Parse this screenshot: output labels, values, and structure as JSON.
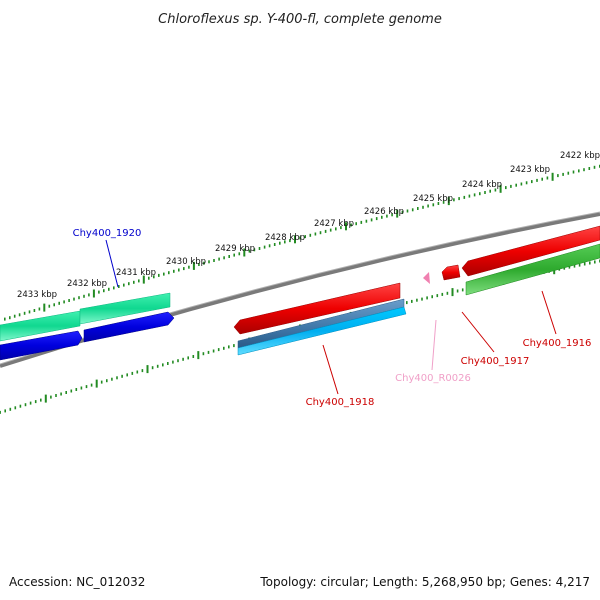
{
  "title": "Chloroflexus sp. Y-400-fl, complete genome",
  "footer": {
    "accession": "Accession: NC_012032",
    "info": "Topology: circular; Length: 5,268,950 bp; Genes: 4,217"
  },
  "tick_labels": [
    "2422 kbp",
    "2423 kbp",
    "2424 kbp",
    "2425 kbp",
    "2426 kbp",
    "2427 kbp",
    "2428 kbp",
    "2429 kbp",
    "2430 kbp",
    "2431 kbp",
    "2432 kbp",
    "2433 kbp"
  ],
  "genes": [
    {
      "name": "Chy400_1916",
      "color": "#cc0000"
    },
    {
      "name": "Chy400_1917",
      "color": "#cc0000"
    },
    {
      "name": "Chy400_R0026",
      "color": "#f0a0c8"
    },
    {
      "name": "Chy400_1918",
      "color": "#cc0000"
    },
    {
      "name": "Chy400_1920",
      "color": "#0000cc"
    }
  ],
  "colors": {
    "backbone": "#808080",
    "ticks": "#228b22",
    "cds_forward": "#ee1111",
    "cds_reverse_green": "#33bb33",
    "cds_reverse_blue_steel": "#4682b4",
    "cds_sky": "#00bfff",
    "cds_aqua": "#22e8a0",
    "cds_blue": "#0000ee",
    "rna": "#f080b0"
  }
}
